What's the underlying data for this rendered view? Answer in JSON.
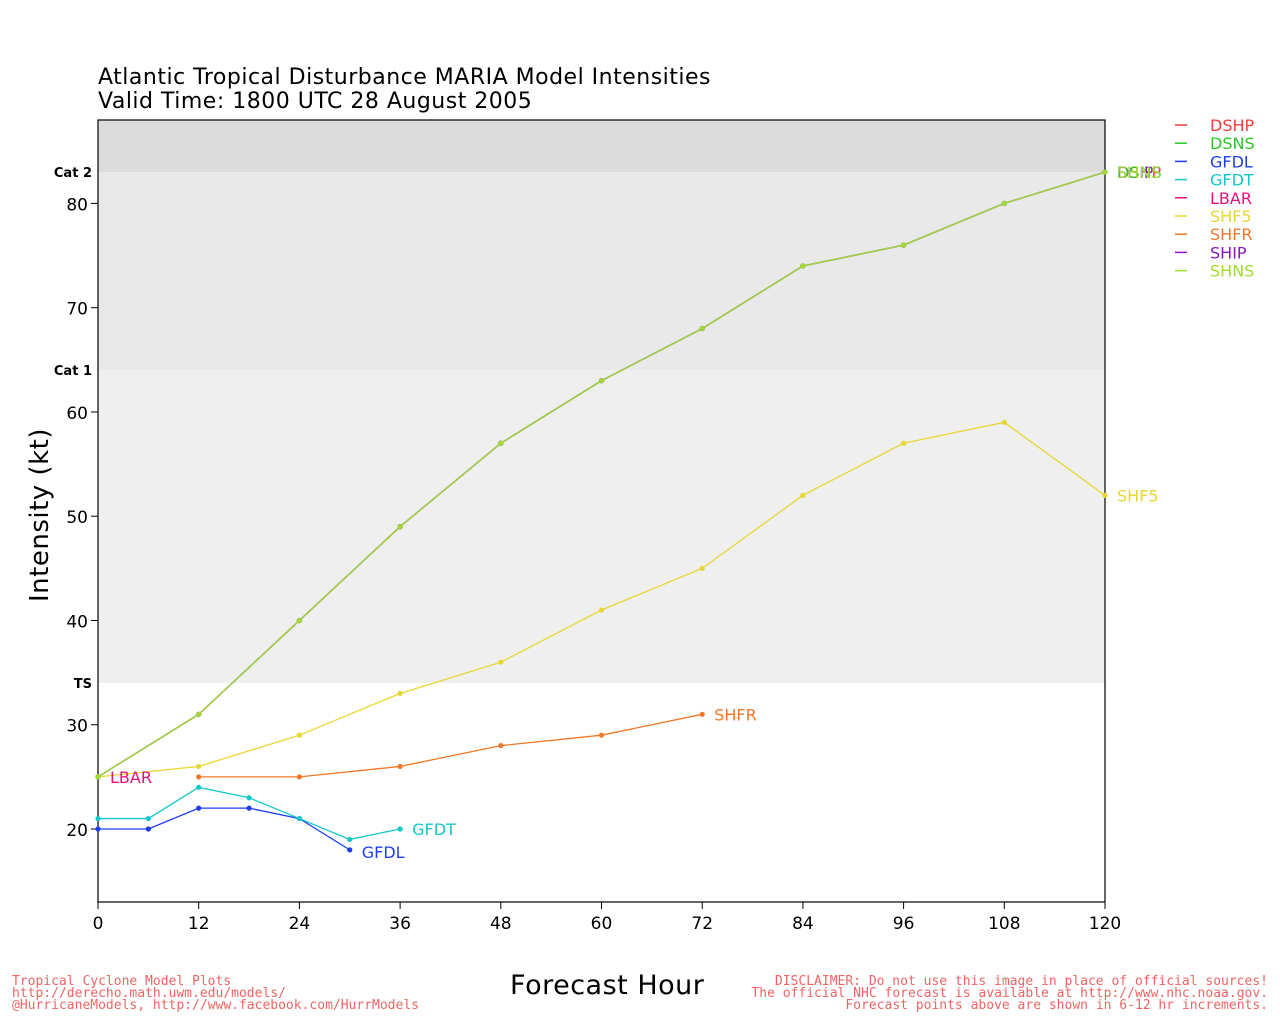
{
  "title_line1": "Atlantic Tropical Disturbance MARIA Model Intensities",
  "title_line2": "Valid Time: 1800 UTC 28 August 2005",
  "footer_left": [
    "Tropical Cyclone Model Plots",
    "http://derecho.math.uwm.edu/models/",
    "@HurricaneModels, http://www.facebook.com/HurrModels"
  ],
  "footer_right": [
    "DISCLAIMER: Do not use this image in place of official sources!",
    "The official NHC forecast is available at http://www.nhc.noaa.gov.",
    "Forecast points above are shown in 6-12 hr increments."
  ],
  "chart_data": {
    "type": "line",
    "xlabel": "Forecast Hour",
    "ylabel": "Intensity (kt)",
    "xlim": [
      0,
      120
    ],
    "ylim": [
      13,
      88
    ],
    "xticks": [
      0,
      12,
      24,
      36,
      48,
      60,
      72,
      84,
      96,
      108,
      120
    ],
    "yticks": [
      20,
      30,
      40,
      50,
      60,
      70,
      80
    ],
    "categories_bands": [
      {
        "label": "TS",
        "from": 34,
        "to": 64,
        "color": "#efefef"
      },
      {
        "label": "Cat 1",
        "from": 64,
        "to": 83,
        "color": "#e9e9e9"
      },
      {
        "label": "Cat 2",
        "from": 83,
        "to": 88,
        "color": "#dcdcdc"
      }
    ],
    "legend_position": "right",
    "series": [
      {
        "name": "DSHP",
        "color": "#f03c3c",
        "x": [
          0,
          12,
          24,
          36,
          48,
          60,
          72,
          84,
          96,
          108,
          120
        ],
        "values": [
          25,
          31,
          40,
          49,
          57,
          63,
          68,
          74,
          76,
          80,
          83
        ],
        "end_label": "DSHP"
      },
      {
        "name": "DSNS",
        "color": "#28c828",
        "x": [
          0,
          12,
          24,
          36,
          48,
          60,
          72,
          84,
          96,
          108,
          120
        ],
        "values": [
          25,
          31,
          40,
          49,
          57,
          63,
          68,
          74,
          76,
          80,
          83
        ],
        "end_label": "DSNS"
      },
      {
        "name": "GFDL",
        "color": "#1e3cf0",
        "x": [
          0,
          6,
          12,
          18,
          24,
          30
        ],
        "values": [
          20,
          20,
          22,
          22,
          21,
          18
        ],
        "end_label": "GFDL"
      },
      {
        "name": "GFDT",
        "color": "#14c8c8",
        "x": [
          0,
          6,
          12,
          18,
          24,
          30,
          36
        ],
        "values": [
          21,
          21,
          24,
          23,
          21,
          19,
          20
        ],
        "end_label": "GFDT"
      },
      {
        "name": "LBAR",
        "color": "#e6127a",
        "x": [
          0
        ],
        "values": [
          25
        ],
        "end_label": "LBAR"
      },
      {
        "name": "SHF5",
        "color": "#e6d732",
        "x": [
          0,
          12,
          24,
          36,
          48,
          60,
          72,
          84,
          96,
          108,
          120
        ],
        "values": [
          25,
          26,
          29,
          33,
          36,
          41,
          45,
          52,
          57,
          59,
          52
        ],
        "end_label": "SHF5"
      },
      {
        "name": "SHFR",
        "color": "#f07828",
        "x": [
          12,
          24,
          36,
          48,
          60,
          72
        ],
        "values": [
          25,
          25,
          26,
          28,
          29,
          31
        ],
        "end_label": "SHFR"
      },
      {
        "name": "SHIP",
        "color": "#8c14c8",
        "x": [
          0,
          12,
          24,
          36,
          48,
          60,
          72,
          84,
          96,
          108,
          120
        ],
        "values": [
          25,
          31,
          40,
          49,
          57,
          63,
          68,
          74,
          76,
          80,
          83
        ],
        "end_label": "SHIP"
      },
      {
        "name": "SHNS",
        "color": "#a0dc32",
        "x": [
          0,
          12,
          24,
          36,
          48,
          60,
          72,
          84,
          96,
          108,
          120
        ],
        "values": [
          25,
          31,
          40,
          49,
          57,
          63,
          68,
          74,
          76,
          80,
          83
        ],
        "end_label": "SHNS"
      }
    ]
  }
}
